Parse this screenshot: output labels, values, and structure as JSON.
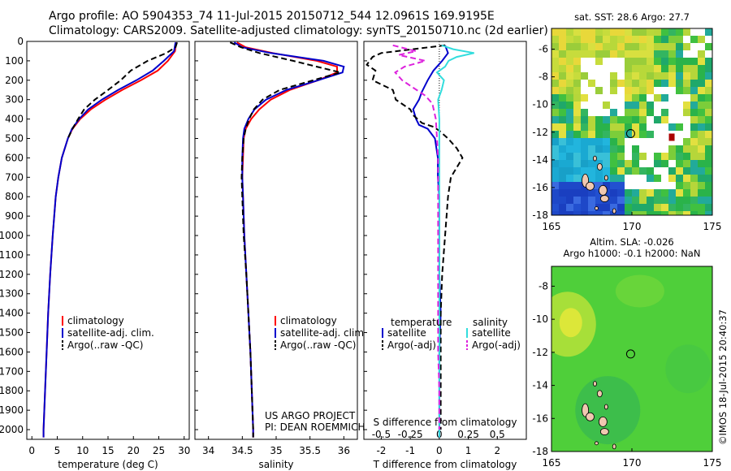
{
  "title_line1": "Argo profile: AO 5904353_74 11-Jul-2015 20150712_544 12.0961S 169.9195E",
  "title_line2": "Climatology: CARS2009. Satellite-adjusted climatology: synTS_20150710.nc (2d earlier)",
  "colors": {
    "climatology": "#ff0000",
    "satellite": "#0000cc",
    "argo": "#000000",
    "salinity_satellite": "#33dddd",
    "salinity_argo": "#dd22dd"
  },
  "depth_axis": {
    "ylim": [
      0,
      2050
    ],
    "ticks": [
      "0",
      "100",
      "200",
      "300",
      "400",
      "500",
      "600",
      "700",
      "800",
      "900",
      "1000",
      "1100",
      "1200",
      "1300",
      "1400",
      "1500",
      "1600",
      "1700",
      "1800",
      "1900",
      "2000"
    ]
  },
  "chart_data": [
    {
      "type": "line",
      "id": "temperature",
      "xlabel": "temperature (deg C)",
      "xlim": [
        -1,
        31
      ],
      "xticks": [
        "0",
        "5",
        "10",
        "15",
        "20",
        "25",
        "30"
      ],
      "legend": [
        "climatology",
        "satellite-adj. clim.",
        "Argo(..raw -QC)"
      ],
      "series": [
        {
          "name": "climatology",
          "depth": [
            5,
            50,
            100,
            150,
            200,
            250,
            300,
            350,
            400,
            450,
            500,
            600,
            700,
            800,
            1000,
            1200,
            1400,
            1600,
            1800,
            2000,
            2040
          ],
          "values": [
            28.4,
            28.2,
            26.8,
            24.8,
            21.5,
            17.8,
            14.5,
            11.6,
            9.5,
            8.0,
            7.1,
            5.9,
            5.2,
            4.7,
            4.1,
            3.6,
            3.2,
            2.9,
            2.6,
            2.3,
            2.3
          ]
        },
        {
          "name": "satellite",
          "depth": [
            5,
            50,
            100,
            150,
            200,
            250,
            300,
            350,
            400,
            450,
            500,
            600,
            700,
            800,
            1000,
            1200,
            1400,
            1600,
            1800,
            2000,
            2040
          ],
          "values": [
            28.3,
            28.0,
            26.0,
            23.8,
            20.6,
            17.0,
            13.8,
            11.1,
            9.3,
            7.9,
            7.1,
            5.9,
            5.2,
            4.7,
            4.1,
            3.6,
            3.2,
            2.9,
            2.6,
            2.3,
            2.3
          ]
        },
        {
          "name": "Argo",
          "depth": [
            5,
            30,
            60,
            100,
            150,
            200,
            250,
            300,
            350,
            400,
            450,
            500
          ],
          "values": [
            28.6,
            28.3,
            26.5,
            22.8,
            19.5,
            17.5,
            15.0,
            12.4,
            10.3,
            9.1,
            8.0,
            7.1
          ]
        }
      ]
    },
    {
      "type": "line",
      "id": "salinity",
      "xlabel": "salinity",
      "xlim": [
        33.8,
        36.2
      ],
      "xticks": [
        "34",
        "34.5",
        "35",
        "35.5",
        "36"
      ],
      "legend": [
        "climatology",
        "satellite-adj. clim.",
        "Argo(..raw -QC)"
      ],
      "annotation": [
        "US ARGO PROJECT",
        "PI: DEAN ROEMMICH"
      ],
      "series": [
        {
          "name": "climatology",
          "depth": [
            5,
            30,
            60,
            100,
            130,
            160,
            200,
            250,
            300,
            350,
            400,
            450,
            500,
            600,
            700,
            800,
            1000,
            1200,
            1400,
            1600,
            1800,
            2000,
            2040
          ],
          "values": [
            34.42,
            34.55,
            34.95,
            35.6,
            35.9,
            35.9,
            35.62,
            35.2,
            34.92,
            34.75,
            34.63,
            34.55,
            34.52,
            34.51,
            34.5,
            34.51,
            34.53,
            34.56,
            34.59,
            34.62,
            34.64,
            34.66,
            34.66
          ]
        },
        {
          "name": "satellite",
          "depth": [
            5,
            30,
            60,
            100,
            130,
            160,
            200,
            250,
            300,
            350,
            400,
            450,
            500,
            600,
            700,
            800,
            1000,
            1200,
            1400,
            1600,
            1800,
            2000,
            2040
          ],
          "values": [
            34.38,
            34.5,
            34.92,
            35.7,
            36.0,
            35.98,
            35.62,
            35.15,
            34.85,
            34.68,
            34.59,
            34.53,
            34.51,
            34.5,
            34.5,
            34.51,
            34.53,
            34.56,
            34.59,
            34.62,
            34.64,
            34.66,
            34.66
          ]
        },
        {
          "name": "Argo",
          "depth": [
            5,
            30,
            60,
            100,
            130,
            160,
            200,
            250,
            300,
            350,
            400,
            450,
            500,
            600,
            700,
            800,
            1000,
            1200,
            1400,
            1600,
            1800,
            2000,
            2040
          ],
          "values": [
            34.32,
            34.48,
            34.75,
            35.25,
            35.6,
            35.95,
            35.55,
            35.05,
            34.8,
            34.67,
            34.6,
            34.55,
            34.52,
            34.5,
            34.49,
            34.5,
            34.52,
            34.56,
            34.59,
            34.62,
            34.64,
            34.66,
            34.66
          ]
        }
      ]
    },
    {
      "type": "line",
      "id": "difference",
      "xlabel_top": "S difference from climatology",
      "xlabel": "T difference from climatology",
      "xlim": [
        -2.6,
        3
      ],
      "xticks_T": [
        "-2",
        "-1",
        "0",
        "1",
        "2"
      ],
      "xticks_S": [
        "-0.5",
        "-0.25",
        "0",
        "0.25",
        "0.5"
      ],
      "legend_temperature_title": "temperature",
      "legend_salinity_title": "salinity",
      "legend": [
        "satellite",
        "Argo(-adj)",
        "satellite",
        "Argo(-adj)"
      ],
      "series": [
        {
          "name": "T satellite",
          "depth": [
            20,
            60,
            100,
            150,
            200,
            260,
            300,
            350,
            400,
            430,
            450,
            500,
            550,
            600,
            700,
            800,
            1000,
            1200,
            1400,
            1600,
            1800,
            2000,
            2040
          ],
          "values": [
            0.2,
            0.3,
            0.1,
            -0.2,
            -0.4,
            -0.6,
            -0.7,
            -0.9,
            -0.8,
            -0.7,
            -0.4,
            -0.15,
            -0.1,
            -0.05,
            -0.05,
            0,
            0,
            0,
            0.05,
            0,
            0,
            0,
            0
          ]
        },
        {
          "name": "T Argo",
          "depth": [
            20,
            60,
            80,
            120,
            150,
            200,
            250,
            300,
            350,
            380,
            420,
            440,
            460,
            500,
            550,
            600,
            650,
            700,
            800,
            900,
            1000,
            1200,
            1400,
            1600,
            1800,
            2000
          ],
          "values": [
            0.2,
            -2.0,
            -2.3,
            -2.5,
            -2.2,
            -2.3,
            -1.6,
            -1.5,
            -1.0,
            -0.9,
            -0.6,
            -0.2,
            0,
            0.3,
            0.6,
            0.8,
            0.6,
            0.4,
            0.3,
            0.25,
            0.2,
            0.1,
            0.05,
            0.05,
            0.05,
            0.05
          ]
        },
        {
          "name": "S satellite",
          "depth": [
            20,
            40,
            60,
            80,
            100,
            130,
            160,
            200,
            250,
            300,
            400,
            500,
            600,
            800,
            1000,
            1200,
            1400,
            1600,
            1800,
            2000,
            2040
          ],
          "values": [
            0.02,
            0.12,
            0.3,
            0.15,
            0.08,
            0.05,
            -0.02,
            0.04,
            0.02,
            -0.01,
            0,
            0,
            0,
            0,
            0,
            0,
            0,
            0,
            0,
            0,
            0
          ]
        },
        {
          "name": "S Argo",
          "depth": [
            20,
            50,
            70,
            100,
            130,
            160,
            200,
            240,
            280,
            320,
            400,
            500,
            600,
            800,
            1000,
            1200,
            1400,
            1600,
            1800,
            2000
          ],
          "values": [
            -0.4,
            -0.2,
            -0.35,
            -0.12,
            -0.3,
            -0.38,
            -0.32,
            -0.22,
            -0.12,
            -0.06,
            -0.03,
            -0.02,
            -0.01,
            -0.01,
            -0.01,
            -0.01,
            -0.01,
            -0.01,
            0,
            0
          ]
        }
      ]
    }
  ],
  "map_sst": {
    "title": "sat. SST: 28.6  Argo: 27.7",
    "xticks": [
      "165",
      "170",
      "175"
    ],
    "yticks": [
      "-6",
      "-8",
      "-10",
      "-12",
      "-14",
      "-16",
      "-18"
    ]
  },
  "map_sla": {
    "title_line1": "Altim. SLA: -0.026",
    "title_line2": "Argo h1000: -0.1  h2000: NaN",
    "xticks": [
      "165",
      "170",
      "175"
    ],
    "yticks": [
      "-8",
      "-10",
      "-12",
      "-14",
      "-16",
      "-18"
    ]
  },
  "credit": "©IMOS 18-Jul-2015 20:40:37"
}
